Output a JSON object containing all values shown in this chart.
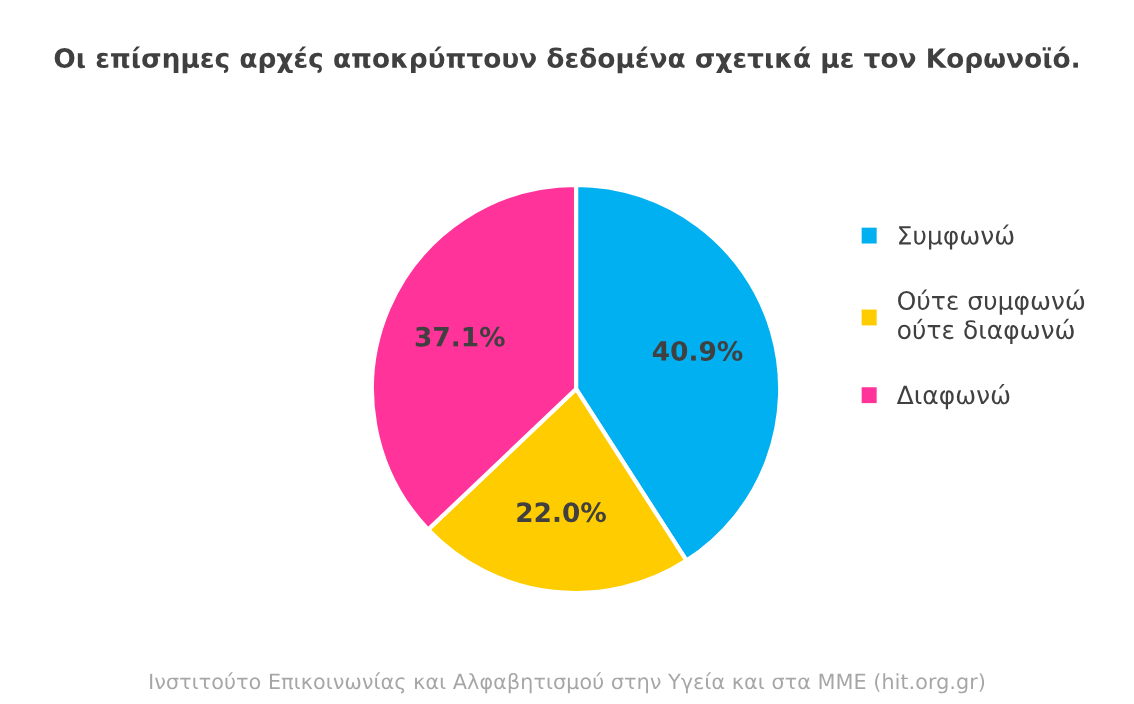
{
  "chart_data": {
    "type": "pie",
    "title": "Οι επίσημες αρχές αποκρύπτουν δεδομένα σχετικά με τον Κορωνοϊό.",
    "categories": [
      "Συμφωνώ",
      "Ούτε συμφωνώ\nούτε διαφωνώ",
      "Διαφωνώ"
    ],
    "values": [
      40.9,
      22.0,
      37.1
    ],
    "value_labels": [
      "40.9%",
      "22.0%",
      "37.1%"
    ],
    "colors": [
      "#00b0f0",
      "#ffcc00",
      "#ff3399"
    ],
    "legend": "right",
    "annotations": [
      "Ινστιτούτο Επικοινωνίας και Αλφαβητισμού στην Υγεία και στα ΜΜΕ (hit.org.gr)"
    ]
  }
}
